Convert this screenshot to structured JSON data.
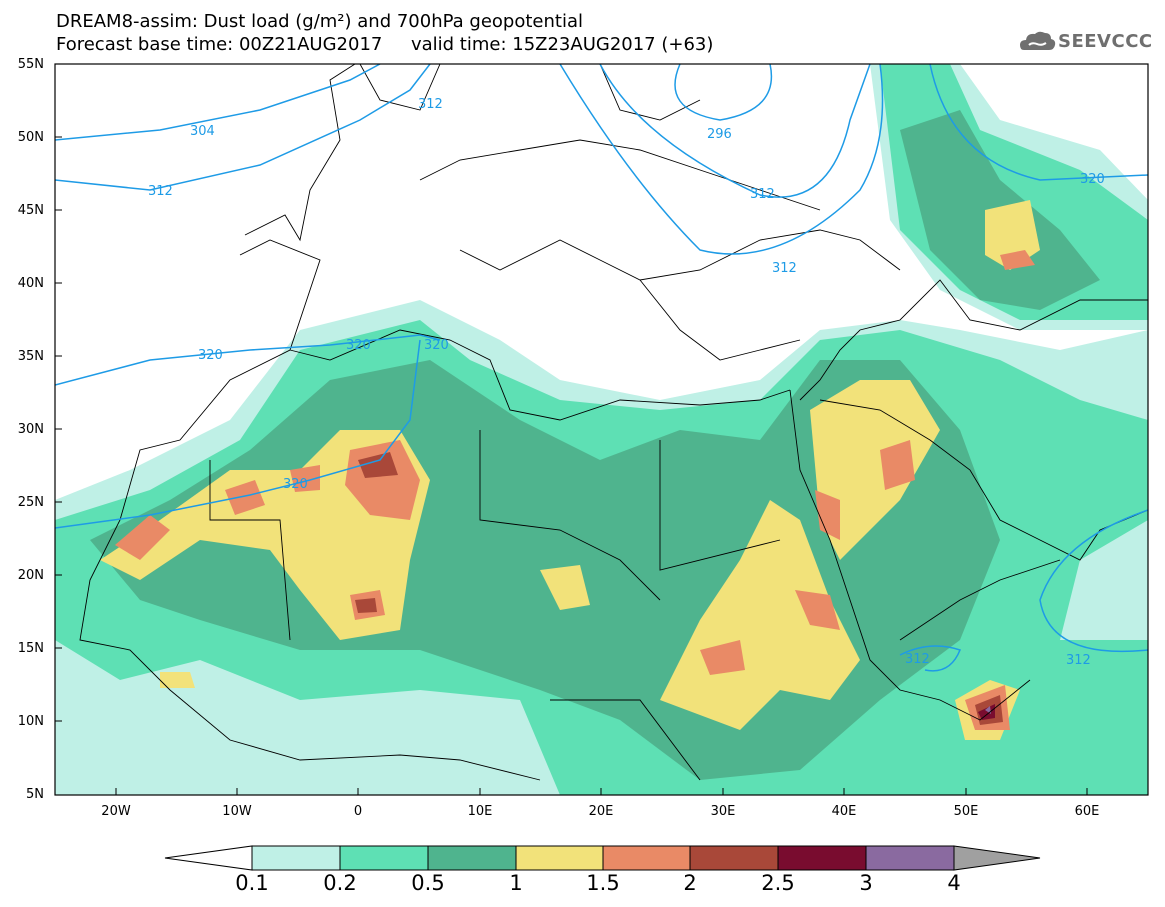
{
  "header": {
    "title_line1": "DREAM8-assim: Dust load (g/m²) and 700hPa geopotential",
    "title_line2": "Forecast base time: 00Z21AUG2017     valid time: 15Z23AUG2017 (+63)",
    "logo_text": "SEEVCCC"
  },
  "axes": {
    "lat_labels": [
      "55N",
      "50N",
      "45N",
      "40N",
      "35N",
      "30N",
      "25N",
      "20N",
      "15N",
      "10N",
      "5N"
    ],
    "lon_labels": [
      "20W",
      "10W",
      "0",
      "10E",
      "20E",
      "30E",
      "40E",
      "50E",
      "60E"
    ]
  },
  "contours": {
    "labels": [
      "304",
      "312",
      "296",
      "312",
      "312",
      "312",
      "320",
      "320",
      "320",
      "320",
      "320",
      "312",
      "312"
    ]
  },
  "colorbar": {
    "labels": [
      "0.1",
      "0.2",
      "0.5",
      "1",
      "1.5",
      "2",
      "2.5",
      "3",
      "4"
    ],
    "colors": [
      "#ffffff",
      "#bff0e6",
      "#5ee0b4",
      "#4fb48e",
      "#f2e27a",
      "#e98a66",
      "#a94839",
      "#790c2f",
      "#8a6aa0",
      "#a0a0a0"
    ]
  },
  "map_colors": {
    "land_border": "#000000",
    "contour_line": "#1e9be6"
  }
}
